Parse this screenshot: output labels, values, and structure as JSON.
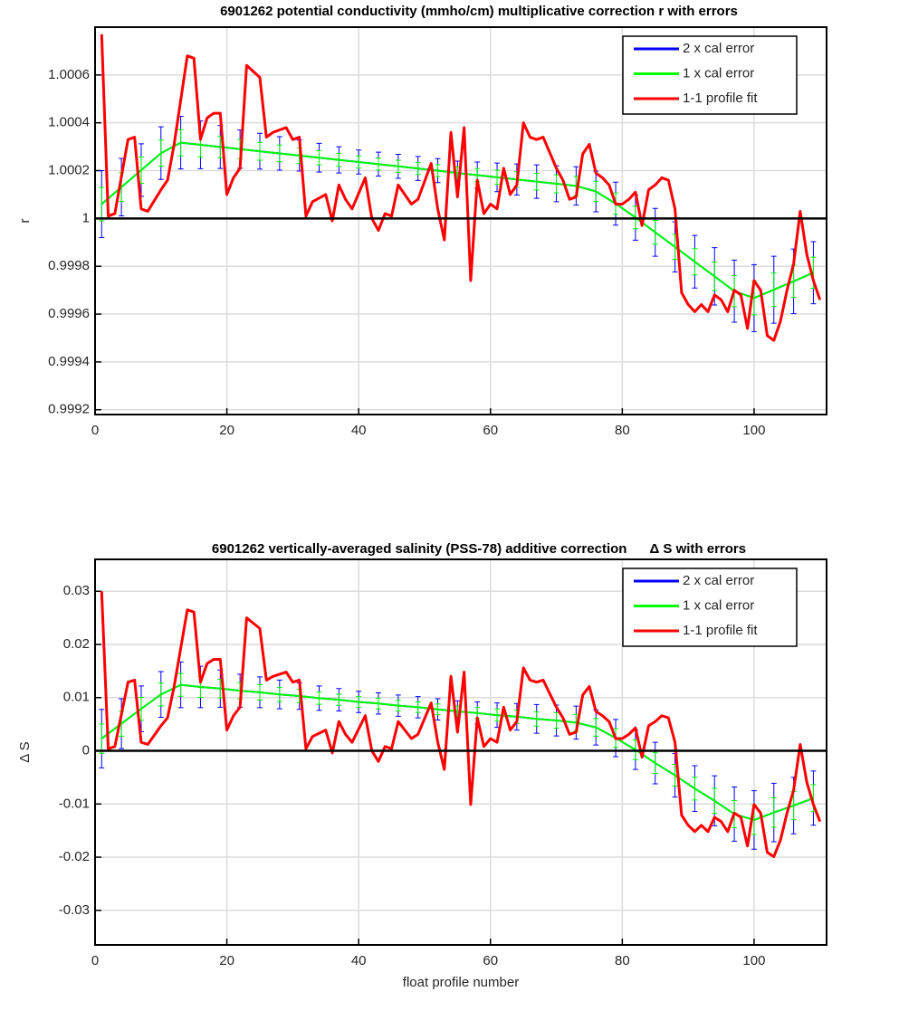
{
  "chart_data": [
    {
      "type": "line",
      "title": "6901262 potential conductivity (mmho/cm) multiplicative correction r with errors",
      "ylabel": "r",
      "xlim": [
        0,
        111
      ],
      "xticks": [
        0,
        20,
        40,
        60,
        80,
        100
      ],
      "ylim": [
        0.99918,
        1.0008
      ],
      "yticks": [
        0.9992,
        0.9994,
        0.9996,
        0.9998,
        1,
        1.0002,
        1.0004,
        1.0006
      ],
      "grid": true,
      "legend": "upper right",
      "hline": 1,
      "series": [
        {
          "name": "2 x cal error",
          "color": "#0000ff",
          "x": [
            1,
            4,
            7,
            10,
            13,
            16,
            19,
            22,
            25,
            28,
            31,
            34,
            37,
            40,
            43,
            46,
            49,
            52,
            55,
            58,
            61,
            64,
            67,
            70,
            73,
            76,
            79,
            82,
            85,
            88,
            91,
            94,
            97,
            100,
            103,
            106,
            109
          ],
          "values": [
            1.00006,
            1.000131,
            1.000202,
            1.000273,
            1.000317,
            1.000308,
            1.000299,
            1.00029,
            1.000281,
            1.000272,
            1.000263,
            1.000254,
            1.000245,
            1.000236,
            1.000227,
            1.000218,
            1.000209,
            1.0002,
            1.00019,
            1.000181,
            1.000172,
            1.000163,
            1.000154,
            1.000145,
            1.000136,
            1.000113,
            1.000062,
            1.000004,
            0.999942,
            0.999881,
            0.999819,
            0.999758,
            0.999696,
            0.999667,
            0.999702,
            0.999737,
            0.999773
          ],
          "errors": [
            0.00014,
            0.00012,
            0.00011,
            0.00011,
            0.00011,
            0.0001,
            9e-05,
            8e-05,
            7.5e-05,
            7e-05,
            6.5e-05,
            6e-05,
            5.5e-05,
            5e-05,
            5e-05,
            5e-05,
            5e-05,
            5e-05,
            5e-05,
            5.5e-05,
            6e-05,
            6.5e-05,
            7e-05,
            7.5e-05,
            8e-05,
            8.5e-05,
            9e-05,
            9.5e-05,
            0.0001,
            0.000105,
            0.00011,
            0.00012,
            0.00013,
            0.00014,
            0.00014,
            0.000135,
            0.00013
          ]
        },
        {
          "name": "1 x cal error",
          "color": "#00ff00",
          "x": [
            1,
            4,
            7,
            10,
            13,
            16,
            19,
            22,
            25,
            28,
            31,
            34,
            37,
            40,
            43,
            46,
            49,
            52,
            55,
            58,
            61,
            64,
            67,
            70,
            73,
            76,
            79,
            82,
            85,
            88,
            91,
            94,
            97,
            100,
            103,
            106,
            109
          ],
          "values": [
            1.00006,
            1.000131,
            1.000202,
            1.000273,
            1.000317,
            1.000308,
            1.000299,
            1.00029,
            1.000281,
            1.000272,
            1.000263,
            1.000254,
            1.000245,
            1.000236,
            1.000227,
            1.000218,
            1.000209,
            1.0002,
            1.00019,
            1.000181,
            1.000172,
            1.000163,
            1.000154,
            1.000145,
            1.000136,
            1.000113,
            1.000062,
            1.000004,
            0.999942,
            0.999881,
            0.999819,
            0.999758,
            0.999696,
            0.999667,
            0.999702,
            0.999737,
            0.999773
          ],
          "errors": [
            7e-05,
            6e-05,
            5.5e-05,
            5.5e-05,
            5.5e-05,
            5e-05,
            4.5e-05,
            4e-05,
            3.75e-05,
            3.5e-05,
            3.25e-05,
            3e-05,
            2.75e-05,
            2.5e-05,
            2.5e-05,
            2.5e-05,
            2.5e-05,
            2.5e-05,
            2.5e-05,
            2.75e-05,
            3e-05,
            3.25e-05,
            3.5e-05,
            3.75e-05,
            4e-05,
            4.25e-05,
            4.5e-05,
            4.75e-05,
            5e-05,
            5.25e-05,
            5.5e-05,
            6e-05,
            6.5e-05,
            7e-05,
            7e-05,
            6.75e-05,
            6.5e-05
          ]
        },
        {
          "name": "1-1 profile fit",
          "color": "#ff0000",
          "x": [
            1,
            2,
            3,
            5,
            6,
            7,
            8,
            10,
            11,
            12,
            14,
            15,
            16,
            17,
            18,
            19,
            20,
            21,
            22,
            23,
            25,
            26,
            27,
            29,
            30,
            31,
            32,
            33,
            35,
            36,
            37,
            38,
            39,
            41,
            42,
            43,
            44,
            45,
            46,
            48,
            49,
            51,
            52,
            53,
            54,
            55,
            56,
            57,
            58,
            59,
            60,
            61,
            62,
            63,
            64,
            65,
            66,
            67,
            68,
            70,
            71,
            72,
            73,
            74,
            75,
            76,
            77,
            78,
            79,
            80,
            81,
            82,
            83,
            84,
            85,
            86,
            87,
            88,
            89,
            90,
            91,
            92,
            93,
            94,
            95,
            96,
            97,
            98,
            99,
            100,
            101,
            102,
            103,
            104,
            105,
            106,
            107,
            108,
            109,
            110
          ],
          "values": [
            1.00077,
            1.00001,
            1.00002,
            1.00033,
            1.00034,
            1.00004,
            1.00003,
            1.00012,
            1.00016,
            1.00031,
            1.00068,
            1.00067,
            1.00033,
            1.00042,
            1.00044,
            1.00044,
            1.0001,
            1.00017,
            1.00021,
            1.00064,
            1.00059,
            1.00034,
            1.00036,
            1.00038,
            1.00033,
            1.00034,
            1.00001,
            1.00007,
            1.0001,
            0.99999,
            1.00014,
            1.00008,
            1.00004,
            1.00017,
            1,
            0.99995,
            1.00002,
            1.00001,
            1.00014,
            1.00006,
            1.00008,
            1.00023,
            1.00004,
            0.99991,
            1.00036,
            1.00009,
            1.00038,
            0.99974,
            1.00016,
            1.00002,
            1.00006,
            1.00004,
            1.00021,
            1.0001,
            1.00014,
            1.0004,
            1.00034,
            1.00033,
            1.00034,
            1.00021,
            1.00016,
            1.00008,
            1.00009,
            1.00027,
            1.00031,
            1.00019,
            1.00017,
            1.00014,
            1.00006,
            1.00006,
            1.00008,
            1.00011,
            0.99997,
            1.00012,
            1.00014,
            1.00017,
            1.00016,
            1.00004,
            0.99969,
            0.99964,
            0.99961,
            0.99964,
            0.99961,
            0.99968,
            0.99966,
            0.99961,
            0.9997,
            0.99968,
            0.99954,
            0.99974,
            0.9997,
            0.99951,
            0.99949,
            0.99957,
            0.9997,
            0.99981,
            1.00003,
            0.99985,
            0.99974,
            0.99966
          ]
        }
      ]
    },
    {
      "type": "line",
      "title": "6901262 vertically-averaged salinity (PSS-78) additive correction      Δ S with errors",
      "xlabel": "float profile number",
      "ylabel": "Δ S",
      "xlim": [
        0,
        111
      ],
      "xticks": [
        0,
        20,
        40,
        60,
        80,
        100
      ],
      "ylim": [
        -0.0365,
        0.036
      ],
      "yticks": [
        -0.03,
        -0.02,
        -0.01,
        0,
        0.01,
        0.02,
        0.03
      ],
      "grid": true,
      "legend": "upper right",
      "hline": 0,
      "series": [
        {
          "name": "2 x cal error",
          "color": "#0000ff",
          "x": [
            1,
            4,
            7,
            10,
            13,
            16,
            19,
            22,
            25,
            28,
            31,
            34,
            37,
            40,
            43,
            46,
            49,
            52,
            55,
            58,
            61,
            64,
            67,
            70,
            73,
            76,
            79,
            82,
            85,
            88,
            91,
            94,
            97,
            100,
            103,
            106,
            109
          ],
          "values": [
            0.0023,
            0.0051,
            0.0079,
            0.0106,
            0.0124,
            0.012,
            0.0117,
            0.0113,
            0.011,
            0.0106,
            0.0103,
            0.0099,
            0.0096,
            0.0092,
            0.0089,
            0.0085,
            0.0082,
            0.0078,
            0.0074,
            0.0071,
            0.0067,
            0.0064,
            0.006,
            0.0057,
            0.0053,
            0.0044,
            0.0024,
            0.0002,
            -0.0023,
            -0.0046,
            -0.0071,
            -0.0094,
            -0.0119,
            -0.013,
            -0.0116,
            -0.0103,
            -0.0089
          ],
          "errors": [
            0.0055,
            0.0047,
            0.0043,
            0.0043,
            0.0043,
            0.0039,
            0.0035,
            0.0031,
            0.0029,
            0.0027,
            0.0025,
            0.0023,
            0.0021,
            0.002,
            0.002,
            0.002,
            0.002,
            0.002,
            0.002,
            0.0021,
            0.0023,
            0.0025,
            0.0027,
            0.0029,
            0.0031,
            0.0033,
            0.0035,
            0.0037,
            0.0039,
            0.0041,
            0.0043,
            0.0047,
            0.0051,
            0.0055,
            0.0055,
            0.0053,
            0.0051
          ]
        },
        {
          "name": "1 x cal error",
          "color": "#00ff00",
          "x": [
            1,
            4,
            7,
            10,
            13,
            16,
            19,
            22,
            25,
            28,
            31,
            34,
            37,
            40,
            43,
            46,
            49,
            52,
            55,
            58,
            61,
            64,
            67,
            70,
            73,
            76,
            79,
            82,
            85,
            88,
            91,
            94,
            97,
            100,
            103,
            106,
            109
          ],
          "values": [
            0.0023,
            0.0051,
            0.0079,
            0.0106,
            0.0124,
            0.012,
            0.0117,
            0.0113,
            0.011,
            0.0106,
            0.0103,
            0.0099,
            0.0096,
            0.0092,
            0.0089,
            0.0085,
            0.0082,
            0.0078,
            0.0074,
            0.0071,
            0.0067,
            0.0064,
            0.006,
            0.0057,
            0.0053,
            0.0044,
            0.0024,
            0.0002,
            -0.0023,
            -0.0046,
            -0.0071,
            -0.0094,
            -0.0119,
            -0.013,
            -0.0116,
            -0.0103,
            -0.0089
          ],
          "errors": [
            0.00275,
            0.00235,
            0.00215,
            0.00215,
            0.00215,
            0.00195,
            0.00175,
            0.00155,
            0.00145,
            0.00135,
            0.00125,
            0.00115,
            0.00105,
            0.001,
            0.001,
            0.001,
            0.001,
            0.001,
            0.001,
            0.00105,
            0.00115,
            0.00125,
            0.00135,
            0.00145,
            0.00155,
            0.00165,
            0.00175,
            0.00185,
            0.00195,
            0.00205,
            0.00215,
            0.00235,
            0.00255,
            0.00275,
            0.00275,
            0.00265,
            0.00255
          ]
        },
        {
          "name": "1-1 profile fit",
          "color": "#ff0000",
          "x": [
            1,
            2,
            3,
            5,
            6,
            7,
            8,
            10,
            11,
            12,
            14,
            15,
            16,
            17,
            18,
            19,
            20,
            21,
            22,
            23,
            25,
            26,
            27,
            29,
            30,
            31,
            32,
            33,
            35,
            36,
            37,
            38,
            39,
            41,
            42,
            43,
            44,
            45,
            46,
            48,
            49,
            51,
            52,
            53,
            54,
            55,
            56,
            57,
            58,
            59,
            60,
            61,
            62,
            63,
            64,
            65,
            66,
            67,
            68,
            70,
            71,
            72,
            73,
            74,
            75,
            76,
            77,
            78,
            79,
            80,
            81,
            82,
            83,
            84,
            85,
            86,
            87,
            88,
            89,
            90,
            91,
            92,
            93,
            94,
            95,
            96,
            97,
            98,
            99,
            100,
            101,
            102,
            103,
            104,
            105,
            106,
            107,
            108,
            109,
            110
          ],
          "values": [
            0.03,
            0.0004,
            0.0008,
            0.0129,
            0.0133,
            0.0016,
            0.0012,
            0.0047,
            0.0062,
            0.0121,
            0.0265,
            0.0261,
            0.0129,
            0.0164,
            0.0172,
            0.0172,
            0.0039,
            0.0066,
            0.0082,
            0.025,
            0.023,
            0.0133,
            0.014,
            0.0148,
            0.0129,
            0.0133,
            0.0004,
            0.0027,
            0.0039,
            -0.0004,
            0.0055,
            0.0031,
            0.0016,
            0.0066,
            0,
            -0.002,
            0.0008,
            0.0004,
            0.0055,
            0.0023,
            0.0031,
            0.009,
            0.0016,
            -0.0035,
            0.014,
            0.0035,
            0.0148,
            -0.0101,
            0.0062,
            0.0008,
            0.0023,
            0.0016,
            0.0082,
            0.0039,
            0.0055,
            0.0156,
            0.0133,
            0.0129,
            0.0133,
            0.0082,
            0.0062,
            0.0031,
            0.0035,
            0.0105,
            0.0121,
            0.0074,
            0.0066,
            0.0055,
            0.0023,
            0.0023,
            0.0031,
            0.0043,
            -0.0012,
            0.0047,
            0.0055,
            0.0066,
            0.0062,
            0.0016,
            -0.0121,
            -0.014,
            -0.0152,
            -0.014,
            -0.0152,
            -0.0125,
            -0.0133,
            -0.0152,
            -0.0117,
            -0.0125,
            -0.0179,
            -0.0101,
            -0.0117,
            -0.0191,
            -0.0199,
            -0.0168,
            -0.0117,
            -0.0074,
            0.0012,
            -0.0059,
            -0.0101,
            -0.0133
          ]
        }
      ]
    }
  ]
}
